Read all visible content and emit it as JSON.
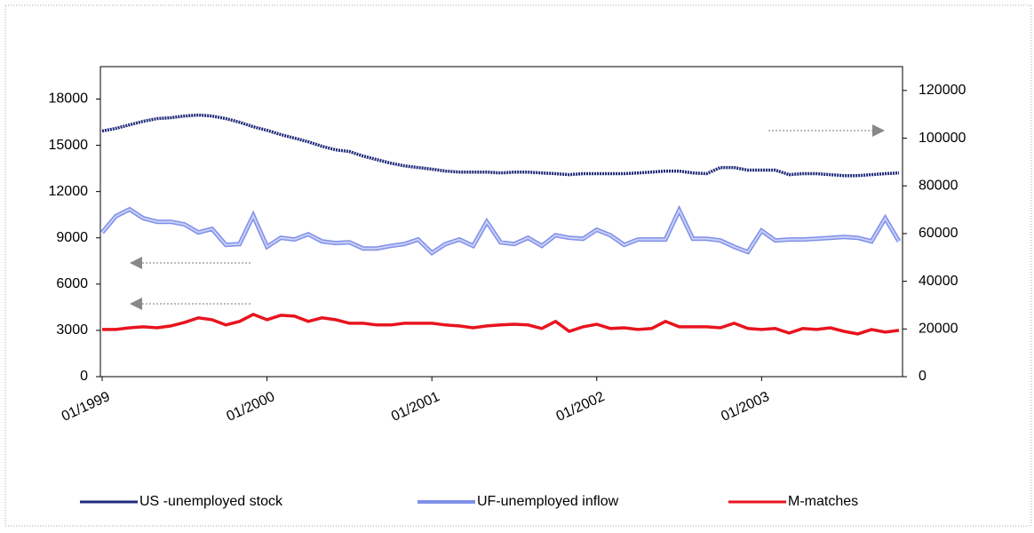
{
  "chart_data": {
    "type": "line",
    "categories": [
      "01/1999",
      null,
      null,
      null,
      null,
      null,
      null,
      null,
      null,
      null,
      null,
      null,
      "01/2000",
      null,
      null,
      null,
      null,
      null,
      null,
      null,
      null,
      null,
      null,
      null,
      "01/2001",
      null,
      null,
      null,
      null,
      null,
      null,
      null,
      null,
      null,
      null,
      null,
      "01/2002",
      null,
      null,
      null,
      null,
      null,
      null,
      null,
      null,
      null,
      null,
      null,
      "01/2003",
      null,
      null,
      null,
      null,
      null,
      null,
      null,
      null,
      null,
      null
    ],
    "ylim": [
      0,
      20100
    ],
    "yticks": [
      0,
      3000,
      6000,
      9000,
      12000,
      15000,
      18000
    ],
    "y2lim": [
      0,
      130000
    ],
    "y2ticks": [
      0,
      20000,
      40000,
      60000,
      80000,
      100000,
      120000
    ],
    "legend": "bottom",
    "series": [
      {
        "name": "US -unemployed stock",
        "color": "#1f2a7a",
        "axis": "y2",
        "values": [
          103000,
          104100,
          105600,
          107100,
          108200,
          108600,
          109300,
          109700,
          109300,
          108200,
          106700,
          104800,
          103300,
          101500,
          100000,
          98500,
          96600,
          95100,
          94400,
          92500,
          91000,
          89500,
          88400,
          87700,
          87000,
          86200,
          85800,
          85800,
          85800,
          85400,
          85800,
          85800,
          85400,
          85100,
          84700,
          85100,
          85100,
          85100,
          85100,
          85400,
          85800,
          86200,
          86200,
          85400,
          85100,
          87700,
          87700,
          86600,
          86600,
          86600,
          84700,
          85100,
          85100,
          84700,
          84300,
          84300,
          84700,
          85100,
          85400
        ]
      },
      {
        "name": "UF-unemployed inflow",
        "color": "#8090e8",
        "axis": "y",
        "values": [
          9350,
          10400,
          10850,
          10270,
          10040,
          10040,
          9870,
          9350,
          9580,
          8540,
          8600,
          10440,
          8420,
          9000,
          8890,
          9230,
          8770,
          8660,
          8710,
          8310,
          8310,
          8480,
          8600,
          8890,
          8020,
          8600,
          8890,
          8480,
          10040,
          8710,
          8600,
          9000,
          8480,
          9170,
          9000,
          8940,
          9520,
          9170,
          8540,
          8890,
          8890,
          8890,
          10790,
          8940,
          8940,
          8830,
          8420,
          8080,
          9460,
          8830,
          8890,
          8890,
          8940,
          9000,
          9060,
          9000,
          8770,
          10270,
          8770
        ]
      },
      {
        "name": "M-matches",
        "color": "#e8141e",
        "axis": "y",
        "values": [
          3060,
          3060,
          3170,
          3230,
          3170,
          3290,
          3520,
          3810,
          3690,
          3350,
          3580,
          4040,
          3690,
          3980,
          3920,
          3580,
          3810,
          3690,
          3460,
          3460,
          3350,
          3350,
          3460,
          3460,
          3460,
          3350,
          3290,
          3170,
          3290,
          3350,
          3400,
          3350,
          3120,
          3580,
          2940,
          3230,
          3400,
          3120,
          3170,
          3060,
          3120,
          3580,
          3230,
          3230,
          3230,
          3170,
          3460,
          3120,
          3060,
          3120,
          2830,
          3120,
          3060,
          3170,
          2940,
          2770,
          3060,
          2890,
          3000
        ]
      }
    ]
  }
}
